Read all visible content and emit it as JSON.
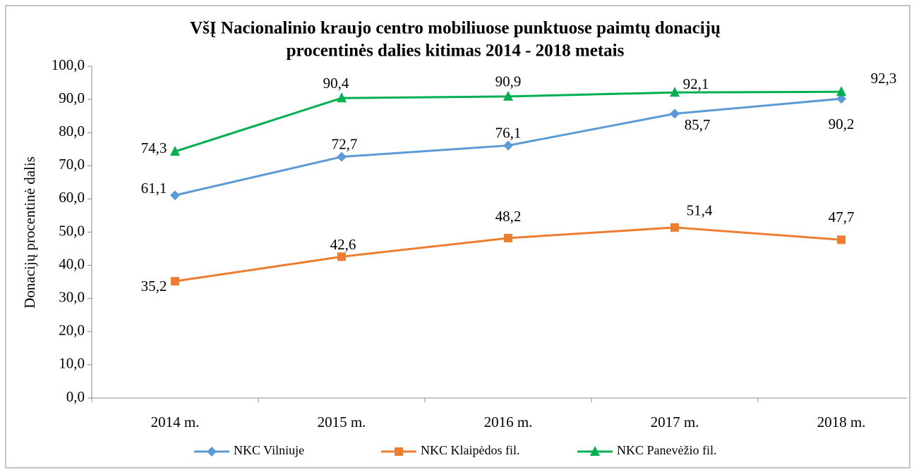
{
  "chart_data": {
    "type": "line",
    "title": [
      "VšĮ Nacionalinio  kraujo centro mobiliuose  punktuose  paimtų  donacijų",
      "procentinės dalies  kitimas  2014 - 2018 metais"
    ],
    "y_label": "Donacijų procentinė dalis",
    "categories": [
      "2014 m.",
      "2015 m.",
      "2016 m.",
      "2017 m.",
      "2018 m."
    ],
    "series": [
      {
        "name": "NKC Vilniuje",
        "color": "#5b9bd5",
        "marker": "diamond",
        "values": [
          61.1,
          72.7,
          76.1,
          85.7,
          90.2
        ],
        "value_labels": [
          "61,1",
          "72,7",
          "76,1",
          "85,7",
          "90,2"
        ]
      },
      {
        "name": "NKC Klaipėdos fil.",
        "color": "#ed7d31",
        "marker": "square",
        "values": [
          35.2,
          42.6,
          48.2,
          51.4,
          47.7
        ],
        "value_labels": [
          "35,2",
          "42,6",
          "48,2",
          "51,4",
          "47,7"
        ]
      },
      {
        "name": "NKC Panevėžio fil.",
        "color": "#00b050",
        "marker": "triangle",
        "values": [
          74.3,
          90.4,
          90.9,
          92.1,
          92.3
        ],
        "value_labels": [
          "74,3",
          "90,4",
          "90,9",
          "92,1",
          "92,3"
        ]
      }
    ],
    "ylim": [
      0,
      100
    ],
    "yticks": [
      {
        "value": 0,
        "label": "0,0"
      },
      {
        "value": 10,
        "label": "10,0"
      },
      {
        "value": 20,
        "label": "20,0"
      },
      {
        "value": 30,
        "label": "30,0"
      },
      {
        "value": 40,
        "label": "40,0"
      },
      {
        "value": 50,
        "label": "50,0"
      },
      {
        "value": 60,
        "label": "60,0"
      },
      {
        "value": 70,
        "label": "70,0"
      },
      {
        "value": 80,
        "label": "80,0"
      },
      {
        "value": 90,
        "label": "90,0"
      },
      {
        "value": 100,
        "label": "100,0"
      }
    ],
    "grid": false,
    "legend": "bottom"
  }
}
